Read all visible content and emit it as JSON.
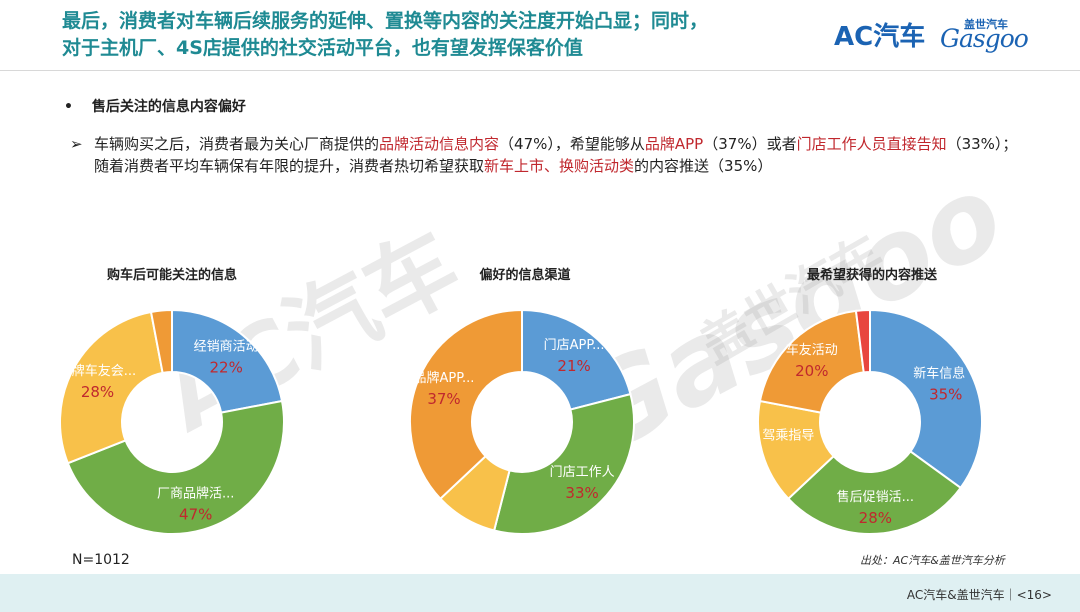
{
  "header": {
    "title_line1": "最后，消费者对车辆后续服务的延伸、置换等内容的关注度开始凸显；同时，",
    "title_line2": "对于主机厂、4S店提供的社交活动平台，也有望发挥保客价值",
    "logo_ac_text": "AC汽车",
    "logo_gasgoo_cn": "盖世汽车",
    "logo_gasgoo_en": "Gasgoo"
  },
  "section": {
    "bullet_mark": "•",
    "bullet_title": "售后关注的信息内容偏好",
    "arrow_mark": "➢",
    "paragraph_parts": [
      {
        "text": "车辆购买之后，消费者最为关心厂商提供的",
        "hl": false
      },
      {
        "text": "品牌活动信息内容",
        "hl": true
      },
      {
        "text": "（47%），希望能够从",
        "hl": false
      },
      {
        "text": "品牌APP",
        "hl": true
      },
      {
        "text": "（37%）或者",
        "hl": false
      },
      {
        "text": "门店工作人员直接告知",
        "hl": true
      },
      {
        "text": "（33%）；随着消费者平均车辆保有年限的提升，消费者热切希望获取",
        "hl": false
      },
      {
        "text": "新车上市、换购活动类",
        "hl": true
      },
      {
        "text": "的内容推送（35%）",
        "hl": false
      }
    ]
  },
  "colors": {
    "blue": "#5b9bd5",
    "green": "#70ad47",
    "yellow": "#f8c14a",
    "orange": "#ef9a36",
    "red": "#e8463f",
    "highlight": "#c0282e",
    "title": "#1f8a93"
  },
  "chart_data": [
    {
      "type": "pie",
      "title": "购车后可能关注的信息",
      "donut": true,
      "slices": [
        {
          "label": "经销商活动",
          "value": 22,
          "value_label": "22%",
          "color": "#5b9bd5"
        },
        {
          "label": "厂商品牌活...",
          "value": 47,
          "value_label": "47%",
          "color": "#70ad47"
        },
        {
          "label": "品牌车友会...",
          "value": 28,
          "value_label": "28%",
          "color": "#f8c14a"
        },
        {
          "label": "",
          "value": 3,
          "value_label": "",
          "color": "#ef9a36"
        }
      ]
    },
    {
      "type": "pie",
      "title": "偏好的信息渠道",
      "donut": true,
      "slices": [
        {
          "label": "门店APP...",
          "value": 21,
          "value_label": "21%",
          "color": "#5b9bd5"
        },
        {
          "label": "门店工作人",
          "value": 33,
          "value_label": "33%",
          "color": "#70ad47"
        },
        {
          "label": "",
          "value": 9,
          "value_label": "",
          "color": "#f8c14a"
        },
        {
          "label": "品牌APP...",
          "value": 37,
          "value_label": "37%",
          "color": "#ef9a36"
        }
      ]
    },
    {
      "type": "pie",
      "title": "最希望获得的内容推送",
      "donut": true,
      "slices": [
        {
          "label": "新车信息（",
          "value": 35,
          "value_label": "35%",
          "color": "#5b9bd5"
        },
        {
          "label": "售后促销活...",
          "value": 28,
          "value_label": "28%",
          "color": "#70ad47"
        },
        {
          "label": "驾乘指导",
          "value": 15,
          "value_label": "",
          "color": "#f8c14a"
        },
        {
          "label": "车友活动",
          "value": 20,
          "value_label": "20%",
          "color": "#ef9a36"
        },
        {
          "label": "",
          "value": 2,
          "value_label": "",
          "color": "#e8463f"
        }
      ]
    }
  ],
  "notes": {
    "sample_size": "N=1012",
    "source": "出处：AC汽车&盖世汽车分析"
  },
  "footer": {
    "text": "AC汽车&盖世汽车｜<16>"
  },
  "watermarks": {
    "ac": "AC汽车",
    "gasgoo_cn": "盖世汽车",
    "gasgoo_en": "Gasgoo"
  }
}
